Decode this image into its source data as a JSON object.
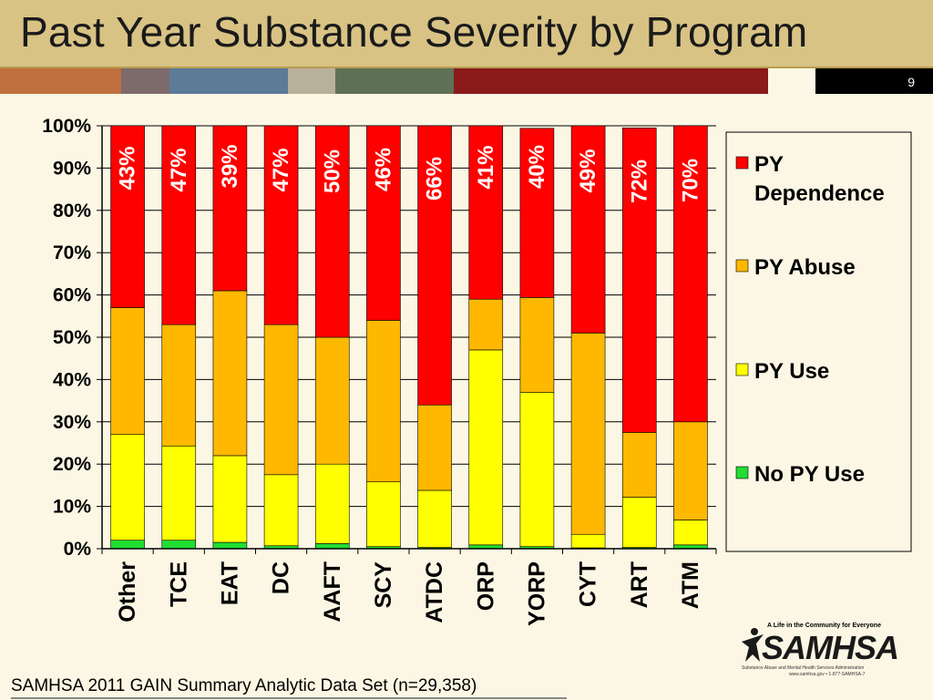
{
  "title": "Past Year Substance Severity by Program",
  "slide_number": "9",
  "footnote": "SAMHSA 2011 GAIN Summary Analytic Data Set (n=29,358)",
  "logo": {
    "tagline": "A Life in the Community for Everyone",
    "name": "SAMHSA",
    "subtitle": "Substance Abuse and Mental Health Services Administration",
    "contact": "www.samhsa.gov • 1-877-SAMHSA-7"
  },
  "colors": {
    "title_bar": "#d8c385",
    "background": "#fbf7e4",
    "strip": [
      "#bf6f3c",
      "#7d6a6a",
      "#5b7b98",
      "#b9b09c",
      "#5f7155",
      "#8b1a1a",
      "#fbf7e4",
      "#000000"
    ]
  },
  "chart_data": {
    "type": "bar",
    "stacked": true,
    "title": "",
    "xlabel": "",
    "ylabel": "",
    "ylim": [
      0,
      100
    ],
    "yticks": [
      "0%",
      "10%",
      "20%",
      "30%",
      "40%",
      "50%",
      "60%",
      "70%",
      "80%",
      "90%",
      "100%"
    ],
    "categories": [
      "Other",
      "TCE",
      "EAT",
      "DC",
      "AAFT",
      "SCY",
      "ATDC",
      "ORP",
      "YORP",
      "CYT",
      "ART",
      "ATM"
    ],
    "series": [
      {
        "name": "No PY Use",
        "color": "#22dd33",
        "values": [
          2,
          2,
          1.5,
          0.7,
          1.2,
          0.5,
          0.3,
          0.9,
          0.5,
          0.2,
          0.3,
          0.9
        ]
      },
      {
        "name": "PY Use",
        "color": "#ffff00",
        "values": [
          25,
          22.3,
          20.5,
          16.8,
          18.8,
          15.3,
          13.5,
          46.1,
          36.5,
          3.2,
          11.9,
          5.9
        ]
      },
      {
        "name": "PY Abuse",
        "color": "#ffb800",
        "values": [
          30,
          28.7,
          39,
          35.5,
          30,
          38.2,
          20.2,
          12,
          22.4,
          47.6,
          15.3,
          23.2
        ]
      },
      {
        "name": "PY Dependence",
        "color": "#ff0000",
        "values": [
          43,
          47,
          39,
          47,
          50,
          46,
          66,
          41,
          40,
          49,
          72,
          70
        ]
      }
    ],
    "data_labels": [
      "43%",
      "47%",
      "39%",
      "47%",
      "50%",
      "46%",
      "66%",
      "41%",
      "40%",
      "49%",
      "72%",
      "70%"
    ],
    "legend": {
      "position": "right",
      "order": [
        "PY Dependence",
        "PY Abuse",
        "PY Use",
        "No PY Use"
      ],
      "labels": [
        [
          "PY",
          "Dependence"
        ],
        [
          "PY Abuse"
        ],
        [
          "PY Use"
        ],
        [
          "No PY Use"
        ]
      ]
    },
    "grid": true
  }
}
